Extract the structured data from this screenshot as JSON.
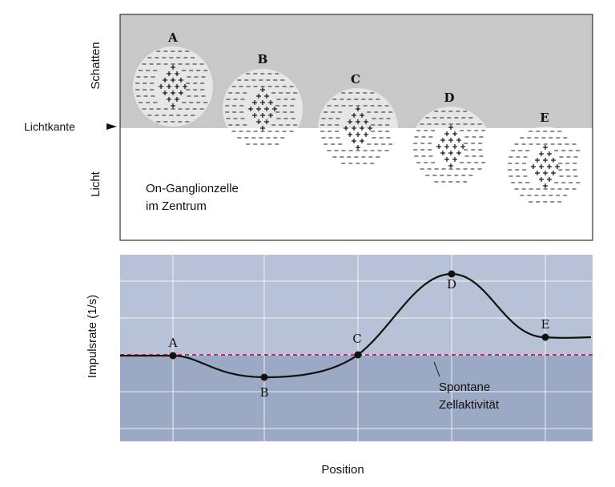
{
  "top_panel": {
    "shadow_label": "Schatten",
    "light_label": "Licht",
    "edge_label": "Lichtkante",
    "cell_caption_line1": "On-Ganglionzelle",
    "cell_caption_line2": "im Zentrum",
    "shadow_color": "#c8c8c8",
    "light_color": "#ffffff",
    "fields": [
      {
        "label": "A"
      },
      {
        "label": "B"
      },
      {
        "label": "C"
      },
      {
        "label": "D"
      },
      {
        "label": "E"
      }
    ]
  },
  "bottom_panel": {
    "ylabel": "Impulsrate (1/s)",
    "xlabel": "Position",
    "baseline_label_line1": "Spontane",
    "baseline_label_line2": "Zellaktivität",
    "upper_color": "#b8c2d6",
    "lower_color": "#9ba9c5",
    "baseline_color": "#c2185b",
    "points": [
      {
        "label": "A"
      },
      {
        "label": "B"
      },
      {
        "label": "C"
      },
      {
        "label": "D"
      },
      {
        "label": "E"
      }
    ]
  }
}
